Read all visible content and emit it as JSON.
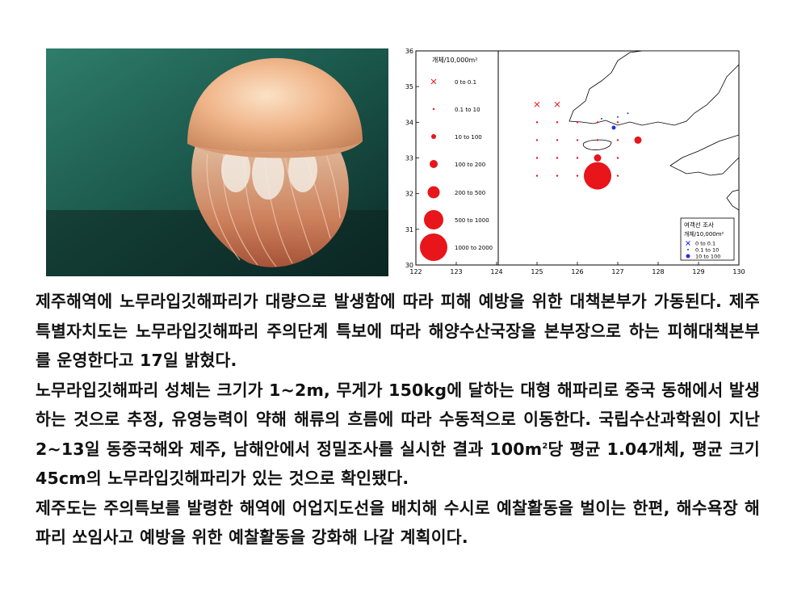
{
  "map": {
    "left_legend": {
      "title": "개체/10,000m²",
      "items": [
        {
          "label": "0 to 0.1",
          "symbol": "cross"
        },
        {
          "label": "0.1 to 10",
          "symbol": "circle"
        },
        {
          "label": "10 to 100",
          "symbol": "circle"
        },
        {
          "label": "100 to 200",
          "symbol": "circle"
        },
        {
          "label": "200 to 500",
          "symbol": "circle"
        },
        {
          "label": "500 to 1000",
          "symbol": "circle"
        },
        {
          "label": "1000 to 2000",
          "symbol": "circle"
        }
      ]
    },
    "right_legend": {
      "title": "여객선 조사",
      "subtitle": "개체/10,000m²",
      "items": [
        {
          "label": "0 to 0.1",
          "symbol": "cross"
        },
        {
          "label": "0.1 to 10",
          "symbol": "dot"
        },
        {
          "label": "10 to 100",
          "symbol": "dot"
        }
      ]
    },
    "x_ticks": [
      "122",
      "123",
      "124",
      "125",
      "126",
      "127",
      "128",
      "129",
      "130"
    ],
    "y_ticks": [
      "30",
      "31",
      "32",
      "33",
      "34",
      "35",
      "36"
    ],
    "colors": {
      "survey": "#e8151b",
      "ferry": "#1e2fe0"
    }
  },
  "article": {
    "paragraphs": [
      "제주해역에 노무라입깃해파리가 대량으로 발생함에 따라 피해 예방을 위한 대책본부가 가동된다. 제주특별자치도는 노무라입깃해파리 주의단계 특보에 따라 해양수산국장을 본부장으로 하는 피해대책본부를 운영한다고 17일 밝혔다.",
      "노무라입깃해파리 성체는 크기가 1~2m, 무게가 150kg에 달하는 대형 해파리로 중국 동해에서 발생하는 것으로 추정, 유영능력이 약해 해류의 흐름에 따라 수동적으로 이동한다. 국립수산과학원이 지난 2~13일 동중국해와 제주, 남해안에서 정밀조사를 실시한 결과 100m²당 평균 1.04개체, 평균 크기 45cm의 노무라입깃해파리가 있는 것으로 확인됐다.",
      "제주도는 주의특보를 발령한 해역에 어업지도선을 배치해 수시로 예찰활동을 벌이는 한편, 해수욕장 해파리 쏘임사고 예방을 위한 예찰활동을 강화해 나갈 계획이다."
    ]
  }
}
